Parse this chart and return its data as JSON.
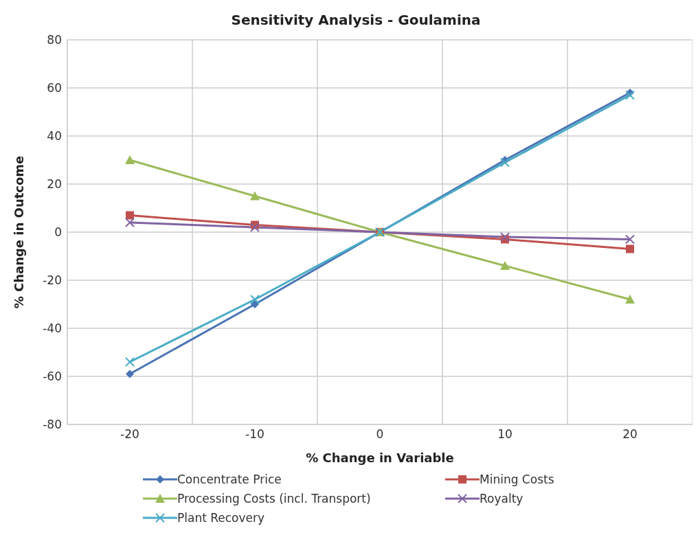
{
  "chart_data": {
    "type": "line",
    "title": "Sensitivity Analysis - Goulamina",
    "xlabel": "% Change in Variable",
    "ylabel": "% Change in Outcome",
    "categories": [
      "-20",
      "-10",
      "0",
      "10",
      "20"
    ],
    "series": [
      {
        "name": "Concentrate Price",
        "color": "#4a74b5",
        "marker": "diamond",
        "values": [
          -59,
          -30,
          0,
          30,
          58
        ]
      },
      {
        "name": "Mining Costs",
        "color": "#c0504d",
        "marker": "square",
        "values": [
          7,
          3,
          0,
          -3,
          -7
        ]
      },
      {
        "name": "Processing Costs (incl. Transport)",
        "color": "#9bbb59",
        "marker": "triangle",
        "values": [
          30,
          15,
          0,
          -14,
          -28
        ]
      },
      {
        "name": "Royalty",
        "color": "#8064a2",
        "marker": "cross",
        "values": [
          4,
          2,
          0,
          -2,
          -3
        ]
      },
      {
        "name": "Plant Recovery",
        "color": "#4bacc6",
        "marker": "cross",
        "values": [
          -54,
          -28,
          0,
          29,
          57
        ]
      }
    ],
    "ylim": [
      -80,
      80
    ],
    "yticks": [
      -80,
      -60,
      -40,
      -20,
      0,
      20,
      40,
      60,
      80
    ],
    "grid": true,
    "legend": "bottom",
    "line_style": "solid"
  }
}
